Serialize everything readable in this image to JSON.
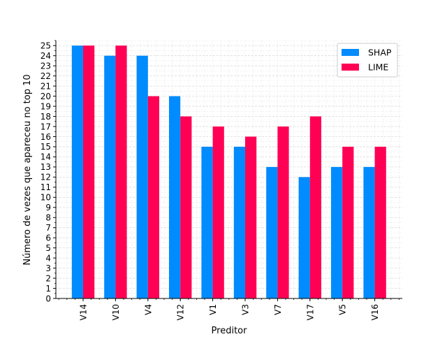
{
  "chart_data": {
    "type": "bar",
    "title": "",
    "xlabel": "Preditor",
    "ylabel": "Número de vezes que apareceu no top 10",
    "categories": [
      "V14",
      "V10",
      "V4",
      "V12",
      "V1",
      "V3",
      "V7",
      "V17",
      "V5",
      "V16"
    ],
    "series": [
      {
        "name": "SHAP",
        "color": "#008bff",
        "values": [
          25,
          24,
          24,
          20,
          15,
          15,
          13,
          12,
          13,
          13
        ]
      },
      {
        "name": "LIME",
        "color": "#ff0055",
        "values": [
          25,
          25,
          20,
          18,
          17,
          16,
          17,
          18,
          15,
          15
        ]
      }
    ],
    "ylim": [
      0,
      25.5
    ],
    "yticks": [
      0,
      1,
      2,
      3,
      4,
      5,
      6,
      7,
      8,
      9,
      10,
      11,
      12,
      13,
      14,
      15,
      16,
      17,
      18,
      19,
      20,
      21,
      22,
      23,
      24,
      25
    ],
    "grid": true,
    "minor_grid": true,
    "legend_position": "top-right"
  }
}
